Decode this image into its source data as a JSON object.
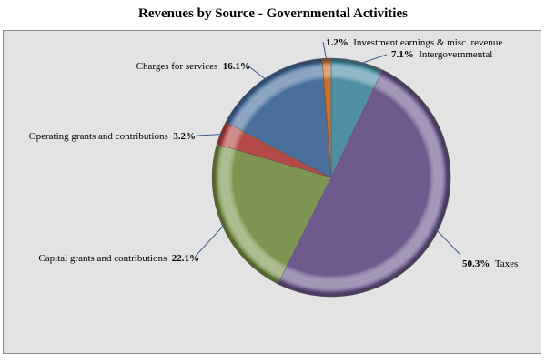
{
  "chart_data": {
    "type": "pie",
    "title": "Revenues by Source - Governmental Activities",
    "unit": "%",
    "slices": [
      {
        "name": "Intergovernmental",
        "value": 7.1,
        "label": "7.1%",
        "color": "#4f8fa3"
      },
      {
        "name": "Taxes",
        "value": 50.3,
        "label": "50.3%",
        "color": "#6e5a8c"
      },
      {
        "name": "Capital grants and contributions",
        "value": 22.1,
        "label": "22.1%",
        "color": "#7d9550"
      },
      {
        "name": "Operating grants and contributions",
        "value": 3.2,
        "label": "3.2%",
        "color": "#b44a47"
      },
      {
        "name": "Charges for services",
        "value": 16.1,
        "label": "16.1%",
        "color": "#4a6f9c"
      },
      {
        "name": "Investment earnings & misc. revenue",
        "value": 1.2,
        "label": "1.2%",
        "color": "#c8702e"
      }
    ],
    "start_angle_deg": 0,
    "direction": "clockwise",
    "legend": "none",
    "data_labels": "outside"
  }
}
